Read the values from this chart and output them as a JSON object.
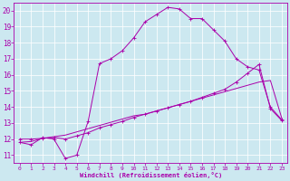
{
  "xlabel": "Windchill (Refroidissement éolien,°C)",
  "x_ticks": [
    0,
    1,
    2,
    3,
    4,
    5,
    6,
    7,
    8,
    9,
    10,
    11,
    12,
    13,
    14,
    15,
    16,
    17,
    18,
    19,
    20,
    21,
    22,
    23
  ],
  "ylim": [
    10.5,
    20.5
  ],
  "xlim": [
    -0.5,
    23.5
  ],
  "y_ticks": [
    11,
    12,
    13,
    14,
    15,
    16,
    17,
    18,
    19,
    20
  ],
  "background_color": "#cce8f0",
  "line_color": "#aa00aa",
  "grid_color": "#b8d8e0",
  "line1_x": [
    0,
    1,
    2,
    3,
    4,
    5,
    6,
    7,
    8,
    9,
    10,
    11,
    12,
    13,
    14,
    15,
    16,
    17,
    18,
    19,
    20,
    21,
    22,
    23
  ],
  "line1_y": [
    11.8,
    11.65,
    12.1,
    12.0,
    10.8,
    11.0,
    13.1,
    16.7,
    17.0,
    17.5,
    18.3,
    19.3,
    19.75,
    20.2,
    20.1,
    19.5,
    19.5,
    18.8,
    18.1,
    17.0,
    16.5,
    16.3,
    14.0,
    13.2
  ],
  "line2_x": [
    0,
    1,
    2,
    3,
    4,
    5,
    6,
    7,
    8,
    9,
    10,
    11,
    12,
    13,
    14,
    15,
    16,
    17,
    18,
    19,
    20,
    21,
    22,
    23
  ],
  "line2_y": [
    12.0,
    12.0,
    12.05,
    12.1,
    12.0,
    12.2,
    12.4,
    12.7,
    12.9,
    13.1,
    13.35,
    13.55,
    13.75,
    13.95,
    14.15,
    14.35,
    14.6,
    14.85,
    15.1,
    15.55,
    16.1,
    16.65,
    13.9,
    13.15
  ],
  "line3_x": [
    0,
    1,
    2,
    3,
    4,
    5,
    6,
    7,
    8,
    9,
    10,
    11,
    12,
    13,
    14,
    15,
    16,
    17,
    18,
    19,
    20,
    21,
    22,
    23
  ],
  "line3_y": [
    11.8,
    11.85,
    12.05,
    12.15,
    12.25,
    12.45,
    12.65,
    12.85,
    13.05,
    13.25,
    13.45,
    13.55,
    13.75,
    13.95,
    14.15,
    14.35,
    14.55,
    14.75,
    14.95,
    15.15,
    15.35,
    15.55,
    15.65,
    13.3
  ]
}
